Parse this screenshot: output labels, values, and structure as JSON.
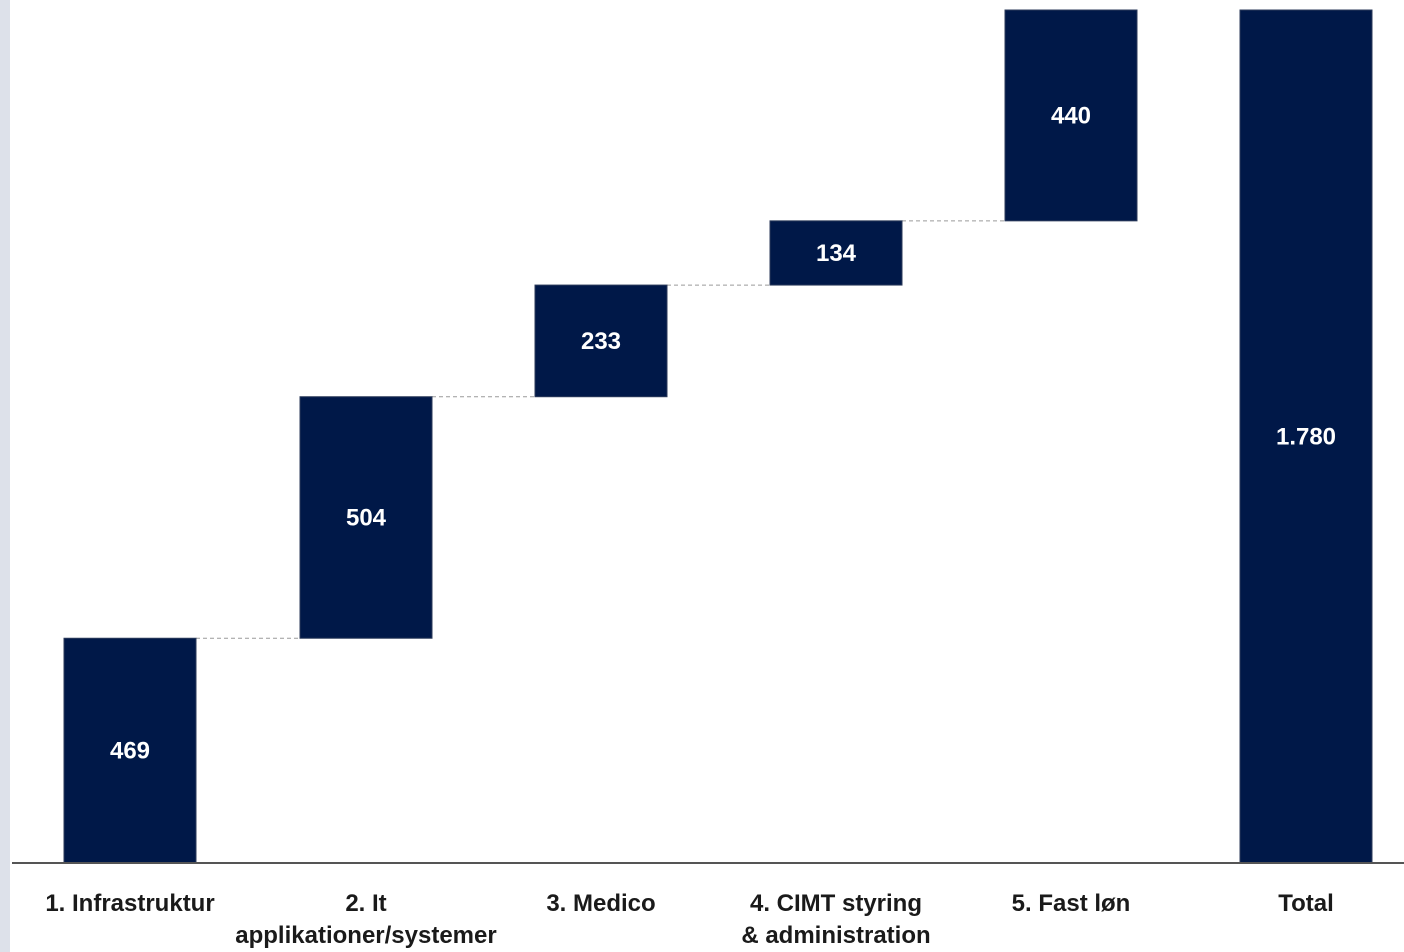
{
  "chart_data": {
    "type": "waterfall",
    "categories": [
      "1. Infrastruktur",
      "2. It\napplikationer/systemer",
      "3. Medico",
      "4. CIMT styring\n& administration",
      "5. Fast løn",
      "Total"
    ],
    "values": [
      469,
      504,
      233,
      134,
      440,
      1780
    ],
    "value_labels": [
      "469",
      "504",
      "233",
      "134",
      "440",
      "1.780"
    ],
    "total_index": 5,
    "ylim": [
      0,
      1780
    ],
    "title": "",
    "xlabel": "",
    "ylabel": ""
  },
  "colors": {
    "bar": "#001848",
    "connector": "#9a9a9a",
    "axis": "#555555",
    "left_strip": "#dde1ea"
  }
}
